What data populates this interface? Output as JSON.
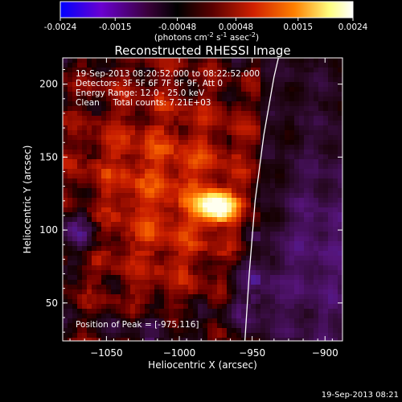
{
  "colorbar": {
    "ticks": [
      "-0.0024",
      "-0.0015",
      "-0.00048",
      "0.00048",
      "0.0015",
      "0.0024"
    ],
    "tick_values": [
      -0.0024,
      -0.0015,
      -0.00048,
      0.00048,
      0.0015,
      0.0024
    ],
    "range": [
      -0.0024,
      0.0024
    ],
    "units_prefix": "(photons cm",
    "units_exp1": "-2",
    "units_mid": " s",
    "units_exp2": "-1",
    "units_mid2": " asec",
    "units_exp3": "-2",
    "units_suffix": ")",
    "colors": [
      "#0000ff",
      "#6a00d0",
      "#3a003a",
      "#000000",
      "#5a0000",
      "#d02000",
      "#ff8000",
      "#ffff80",
      "#ffffff"
    ]
  },
  "chart_data": {
    "type": "heatmap",
    "title": "Reconstructed RHESSI Image",
    "xlabel": "Heliocentric X (arcsec)",
    "ylabel": "Heliocentric Y (arcsec)",
    "xlim": [
      -1080,
      -888
    ],
    "ylim": [
      24,
      218
    ],
    "xticks": [
      -1050,
      -1000,
      -950,
      -900
    ],
    "xtick_labels": [
      "−1050",
      "−1000",
      "−950",
      "−900"
    ],
    "yticks": [
      50,
      100,
      150,
      200
    ],
    "ytick_labels": [
      "50",
      "100",
      "150",
      "200"
    ],
    "peak": {
      "x": -975,
      "y": 116
    },
    "limb_curve": [
      [
        -955,
        24
      ],
      [
        -952,
        70
      ],
      [
        -948,
        120
      ],
      [
        -942,
        165
      ],
      [
        -935,
        205
      ],
      [
        -932,
        218
      ]
    ],
    "annotations": [
      "19-Sep-2013 08:20:52.000 to 08:22:52.000",
      "Detectors: 3F 5F 6F 7F 8F 9F, Att 0",
      "Energy Range: 12.0 - 25.0 keV",
      "Clean     Total counts: 7.21E+03"
    ],
    "peak_label": "Position of Peak = [-975,116]"
  },
  "footer": {
    "timestamp": "19-Sep-2013 08:21"
  }
}
